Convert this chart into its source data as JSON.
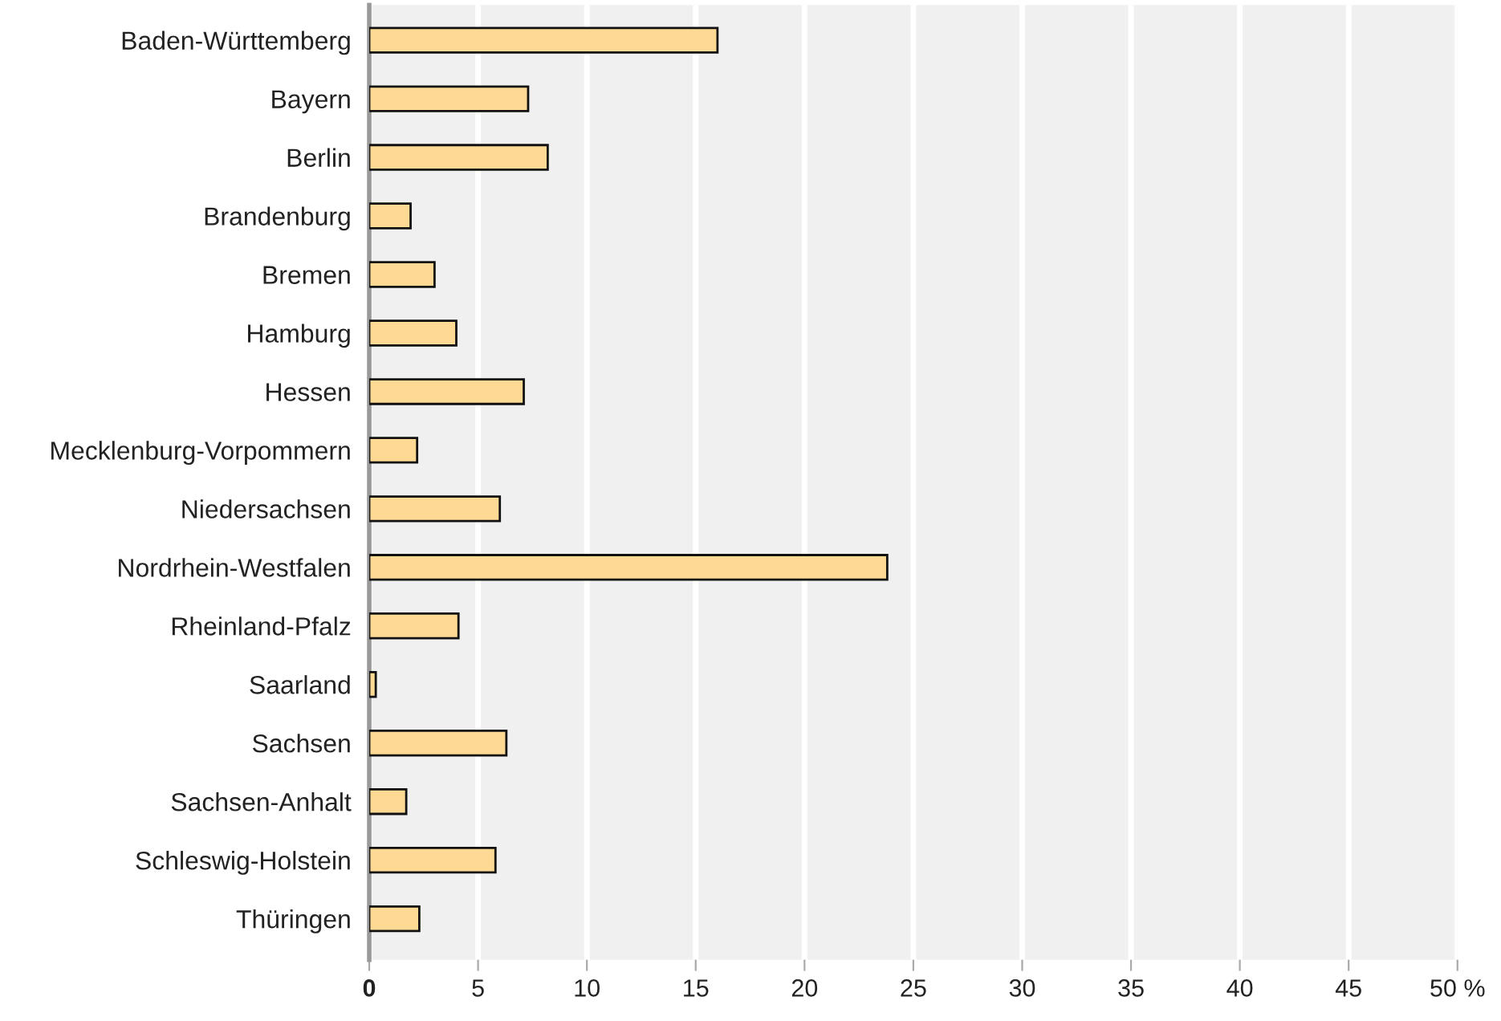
{
  "chart_data": {
    "type": "bar",
    "orientation": "horizontal",
    "categories": [
      "Baden-Württemberg",
      "Bayern",
      "Berlin",
      "Brandenburg",
      "Bremen",
      "Hamburg",
      "Hessen",
      "Mecklenburg-Vorpommern",
      "Niedersachsen",
      "Nordrhein-Westfalen",
      "Rheinland-Pfalz",
      "Saarland",
      "Sachsen",
      "Sachsen-Anhalt",
      "Schleswig-Holstein",
      "Thüringen"
    ],
    "values": [
      16.0,
      7.3,
      8.2,
      1.9,
      3.0,
      4.0,
      7.1,
      2.2,
      6.0,
      23.8,
      4.1,
      0.3,
      6.3,
      1.7,
      5.8,
      2.3
    ],
    "color": "#fdd994",
    "xlim": [
      0,
      50
    ],
    "xticks": [
      0,
      5,
      10,
      15,
      20,
      25,
      30,
      35,
      40,
      45,
      {
        "value": 50,
        "label": "50 %"
      }
    ],
    "grid": "x"
  }
}
